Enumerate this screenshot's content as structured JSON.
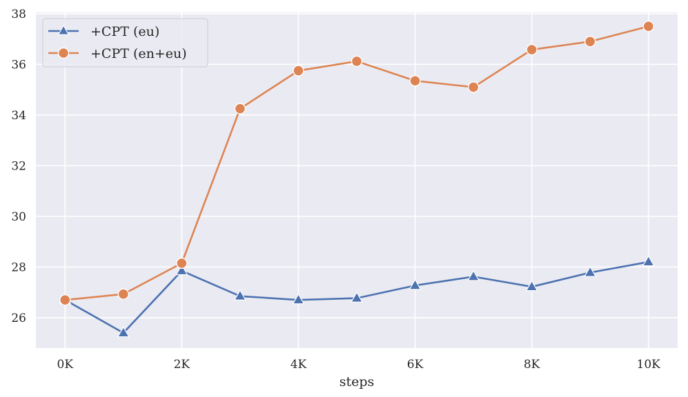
{
  "chart_data": {
    "type": "line",
    "title": "",
    "xlabel": "steps",
    "ylabel": "",
    "x": [
      0,
      1000,
      2000,
      3000,
      4000,
      5000,
      6000,
      7000,
      8000,
      9000,
      10000
    ],
    "xticks": [
      0,
      2000,
      4000,
      6000,
      8000,
      10000
    ],
    "xtick_labels": [
      "0K",
      "2K",
      "4K",
      "6K",
      "8K",
      "10K"
    ],
    "xlim": [
      -500,
      10500
    ],
    "ylim": [
      24.8,
      38.05
    ],
    "yticks": [
      26,
      28,
      30,
      32,
      34,
      36,
      38
    ],
    "ytick_labels": [
      "26",
      "28",
      "30",
      "32",
      "34",
      "36",
      "38"
    ],
    "grid": true,
    "legend_position": "top-left",
    "series": [
      {
        "name": "+CPT (eu)",
        "color": "#4c72b0",
        "marker": "triangle",
        "values": [
          26.7,
          25.4,
          27.85,
          26.85,
          26.7,
          26.77,
          27.27,
          27.62,
          27.22,
          27.78,
          28.2
        ]
      },
      {
        "name": "+CPT (en+eu)",
        "color": "#dd8452",
        "marker": "circle",
        "values": [
          26.7,
          26.93,
          28.15,
          34.25,
          35.75,
          36.12,
          35.35,
          35.1,
          36.58,
          36.9,
          37.5
        ]
      }
    ]
  }
}
